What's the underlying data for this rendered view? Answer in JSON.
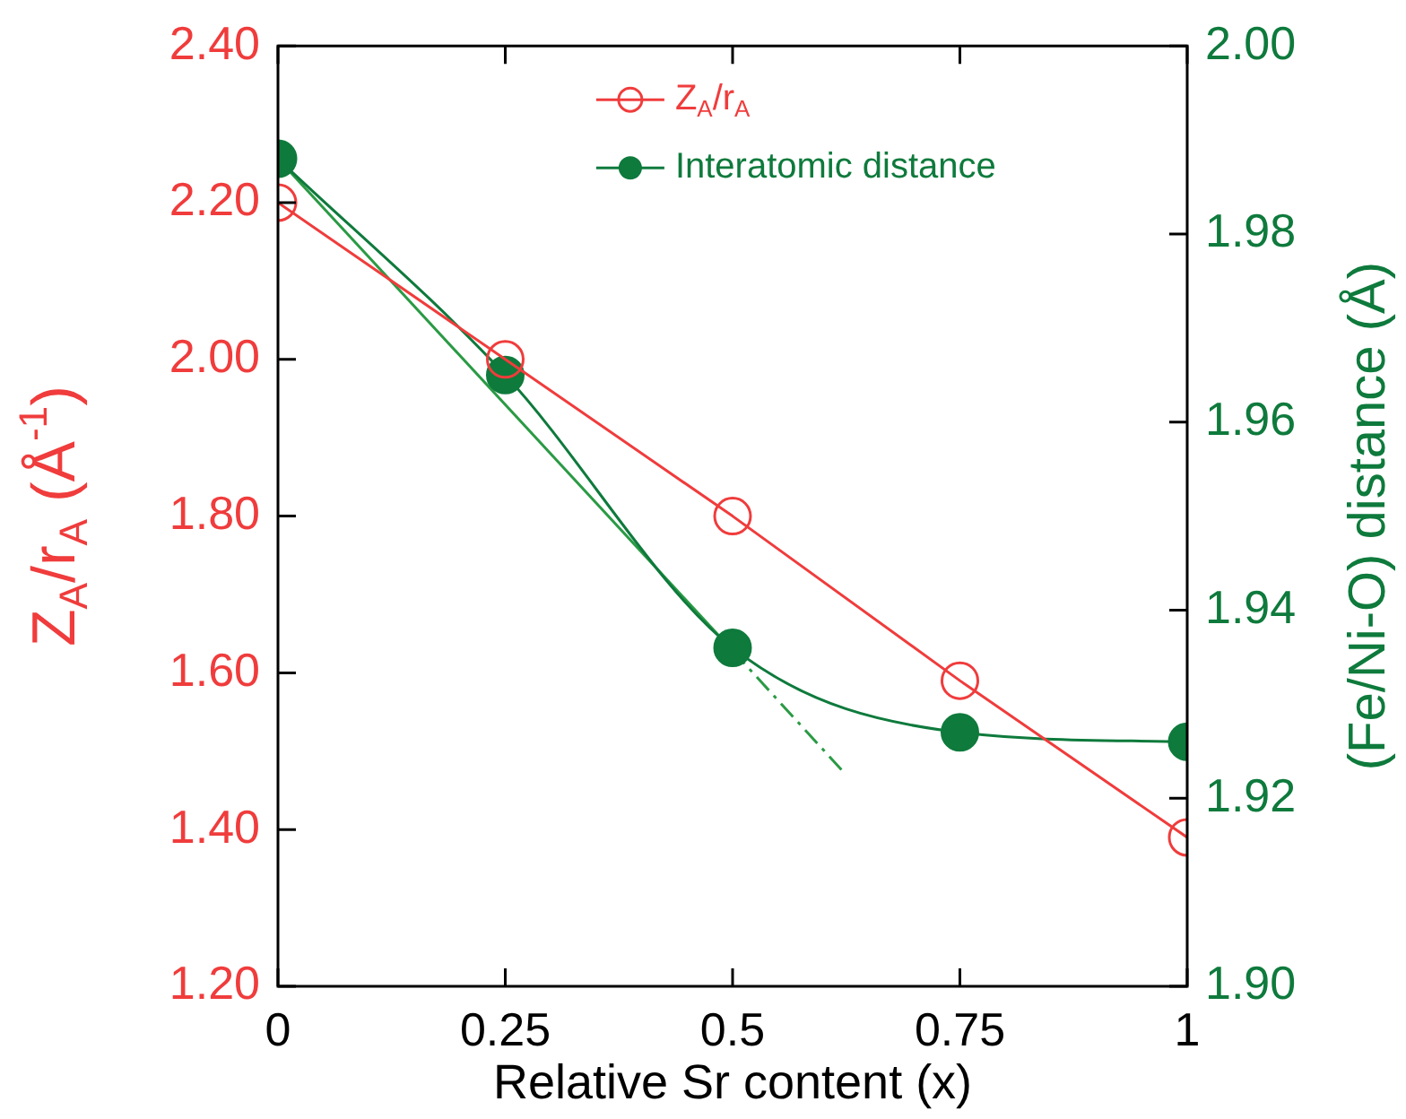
{
  "chart_data": {
    "type": "line",
    "xlabel": "Relative Sr content (x)",
    "ylabel": "Z$_{A}$/r$_{A}$ (Å$^{-1}$)",
    "y2label": "(Fe/Ni-O) distance (Å)",
    "x": [
      0,
      0.25,
      0.5,
      0.75,
      1
    ],
    "xlim": [
      0,
      1
    ],
    "xticks": [
      0,
      0.25,
      0.5,
      0.75,
      1
    ],
    "ylim": [
      1.2,
      2.4
    ],
    "yticks": [
      {
        "value": 1.2,
        "label": "1.20"
      },
      {
        "value": 1.4,
        "label": "1.40"
      },
      {
        "value": 1.6,
        "label": "1.60"
      },
      {
        "value": 1.8,
        "label": "1.80"
      },
      {
        "value": 2.0,
        "label": "2.00"
      },
      {
        "value": 2.2,
        "label": "2.20"
      },
      {
        "value": 2.4,
        "label": "2.40"
      }
    ],
    "y2lim": [
      1.9,
      2.0
    ],
    "y2ticks": [
      {
        "value": 1.9,
        "label": "1.90"
      },
      1.92,
      1.94,
      1.96,
      1.98,
      {
        "value": 2.0,
        "label": "2.00"
      }
    ],
    "grid": false,
    "legend": "top",
    "series": [
      {
        "name": "Z$_{A}$/r$_{A}$",
        "color": "#f03c3c",
        "values": [
          2.2,
          2.0,
          1.8,
          1.59,
          1.39
        ],
        "marker": "circle"
      },
      {
        "name": "Interatomic distance",
        "color": "#0e7a3c",
        "axis": "y2",
        "values": [
          1.988,
          1.965,
          1.936,
          1.927,
          1.926
        ],
        "marker": "circle"
      },
      {
        "type": "line",
        "axis": "y2",
        "color": "#2a9a44",
        "x": [
          0,
          0.5
        ],
        "values": [
          1.988,
          1.9357
        ],
        "marker": "none",
        "line_style": "solid"
      },
      {
        "type": "line",
        "axis": "y2",
        "color": "#2a9a44",
        "x": [
          0.5,
          0.62
        ],
        "values": [
          1.9357,
          1.923
        ],
        "marker": "none",
        "line_style": "dashed"
      }
    ]
  }
}
